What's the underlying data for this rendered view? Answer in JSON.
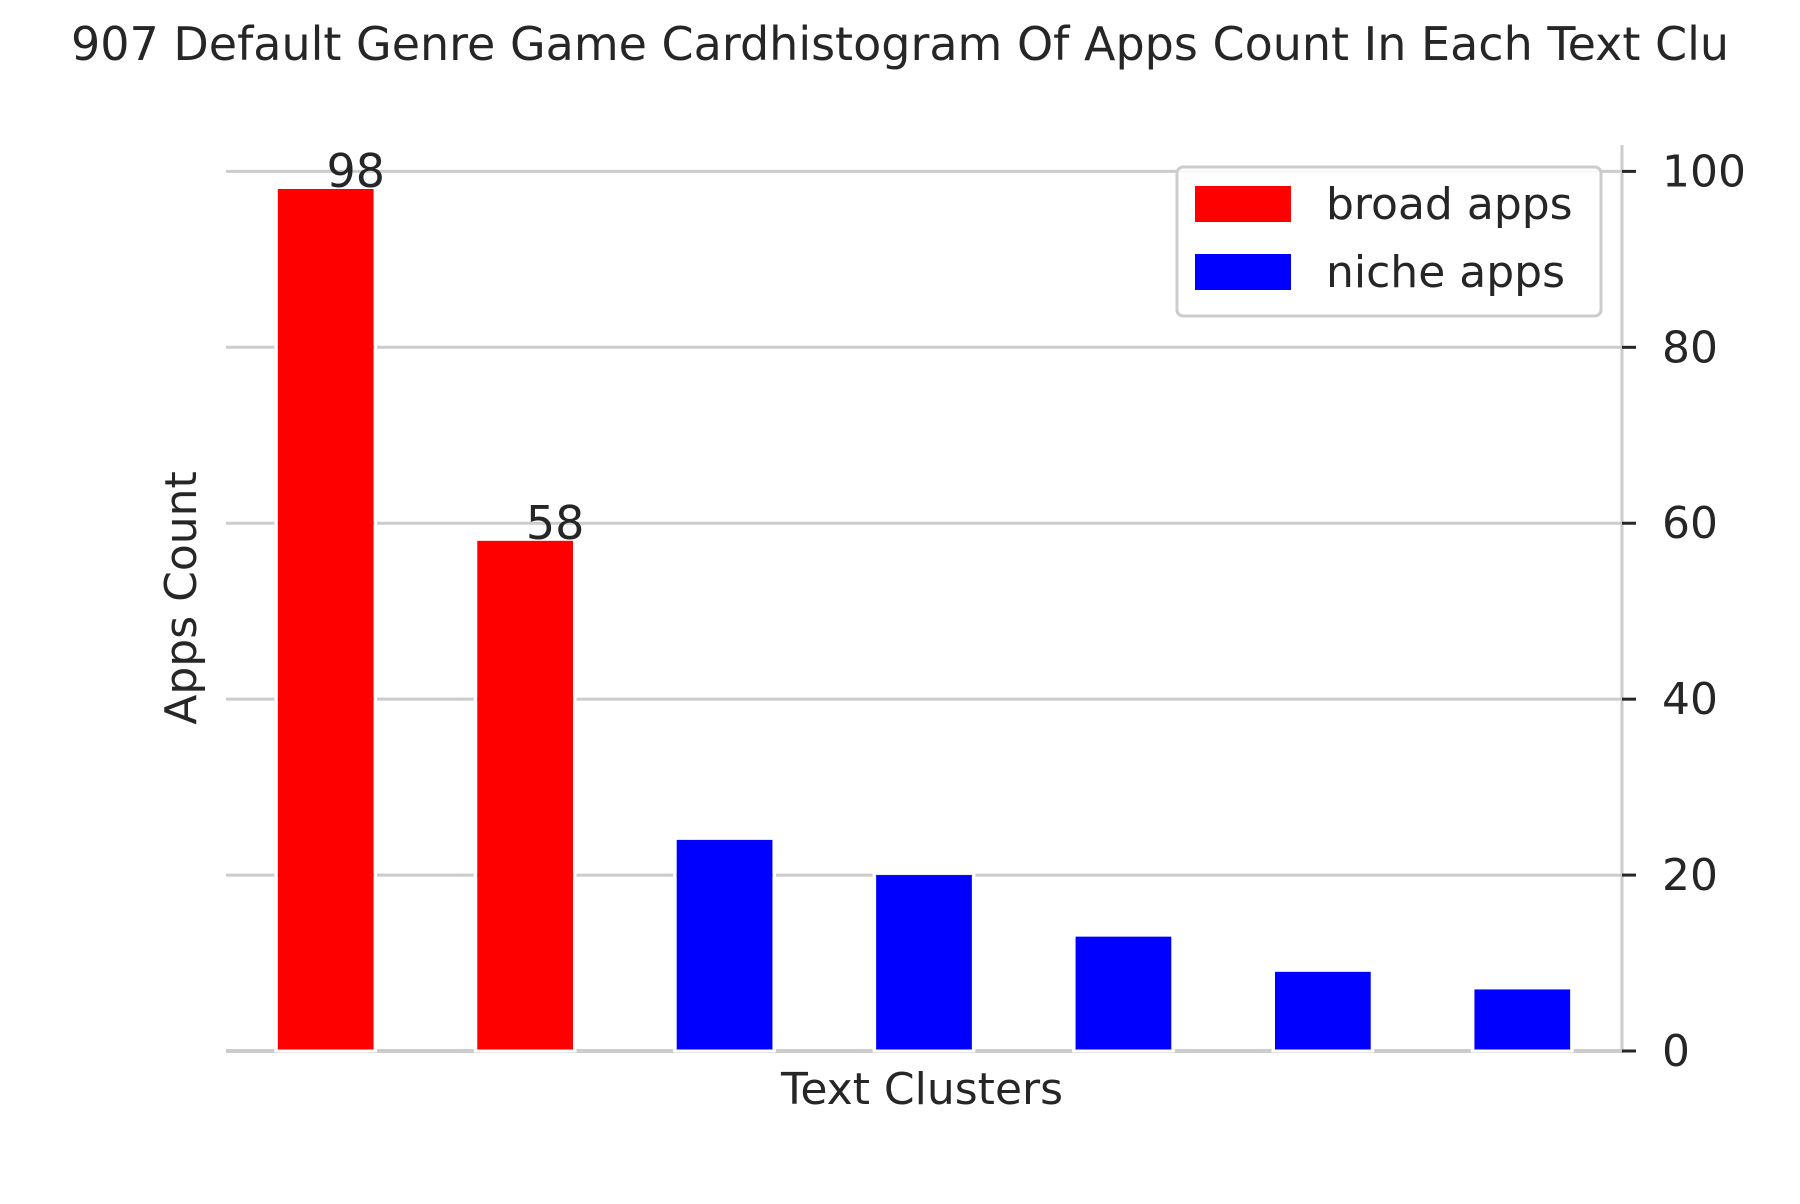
{
  "chart_data": {
    "type": "bar",
    "title": "907 Default Genre Game Cardhistogram Of Apps Count In Each Text Clu",
    "xlabel": "Text Clusters",
    "ylabel": "Apps Count",
    "ylim": [
      0,
      103
    ],
    "yticks": [
      0,
      20,
      40,
      60,
      80,
      100
    ],
    "y_axis_side": "right",
    "grid": true,
    "legend_position": "top-right",
    "categories": [
      "",
      "",
      "",
      "",
      "",
      "",
      ""
    ],
    "values": [
      98,
      58,
      24,
      20,
      13,
      9,
      7
    ],
    "bar_series": [
      "broad apps",
      "broad apps",
      "niche apps",
      "niche apps",
      "niche apps",
      "niche apps",
      "niche apps"
    ],
    "data_labels": [
      "98",
      "58",
      "",
      "",
      "",
      "",
      ""
    ],
    "series": [
      {
        "name": "broad apps",
        "color": "#ff0000"
      },
      {
        "name": "niche apps",
        "color": "#0000ff"
      }
    ]
  }
}
